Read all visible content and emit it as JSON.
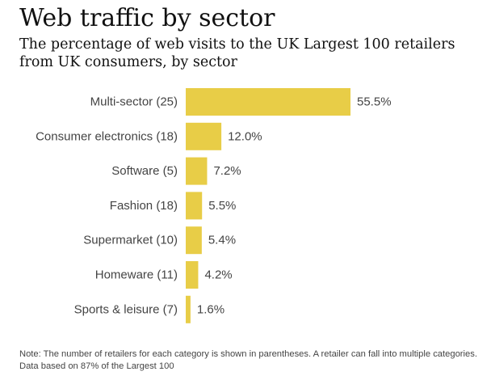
{
  "title": "Web traffic by sector",
  "subtitle": "The percentage of web visits to the UK Largest 100 retailers from UK consumers, by sector",
  "note": "Note: The number of retailers for each category is shown in parentheses. A retailer can fall into multiple categories. Data based on 87% of the Largest 100",
  "colors": {
    "bar": "#e8cd47"
  },
  "chart_data": {
    "type": "bar",
    "orientation": "horizontal",
    "title": "Web traffic by sector",
    "subtitle": "The percentage of web visits to the UK Largest 100 retailers from UK consumers, by sector",
    "categories": [
      "Multi-sector (25)",
      "Consumer electronics (18)",
      "Software (5)",
      "Fashion (18)",
      "Supermarket (10)",
      "Homeware (11)",
      "Sports & leisure (7)"
    ],
    "values": [
      55.5,
      12.0,
      7.2,
      5.5,
      5.4,
      4.2,
      1.6
    ],
    "value_labels": [
      "55.5%",
      "12.0%",
      "7.2%",
      "5.5%",
      "5.4%",
      "4.2%",
      "1.6%"
    ],
    "unit": "%",
    "xlim": [
      0,
      55.5
    ],
    "grid": false,
    "legend": "none"
  }
}
